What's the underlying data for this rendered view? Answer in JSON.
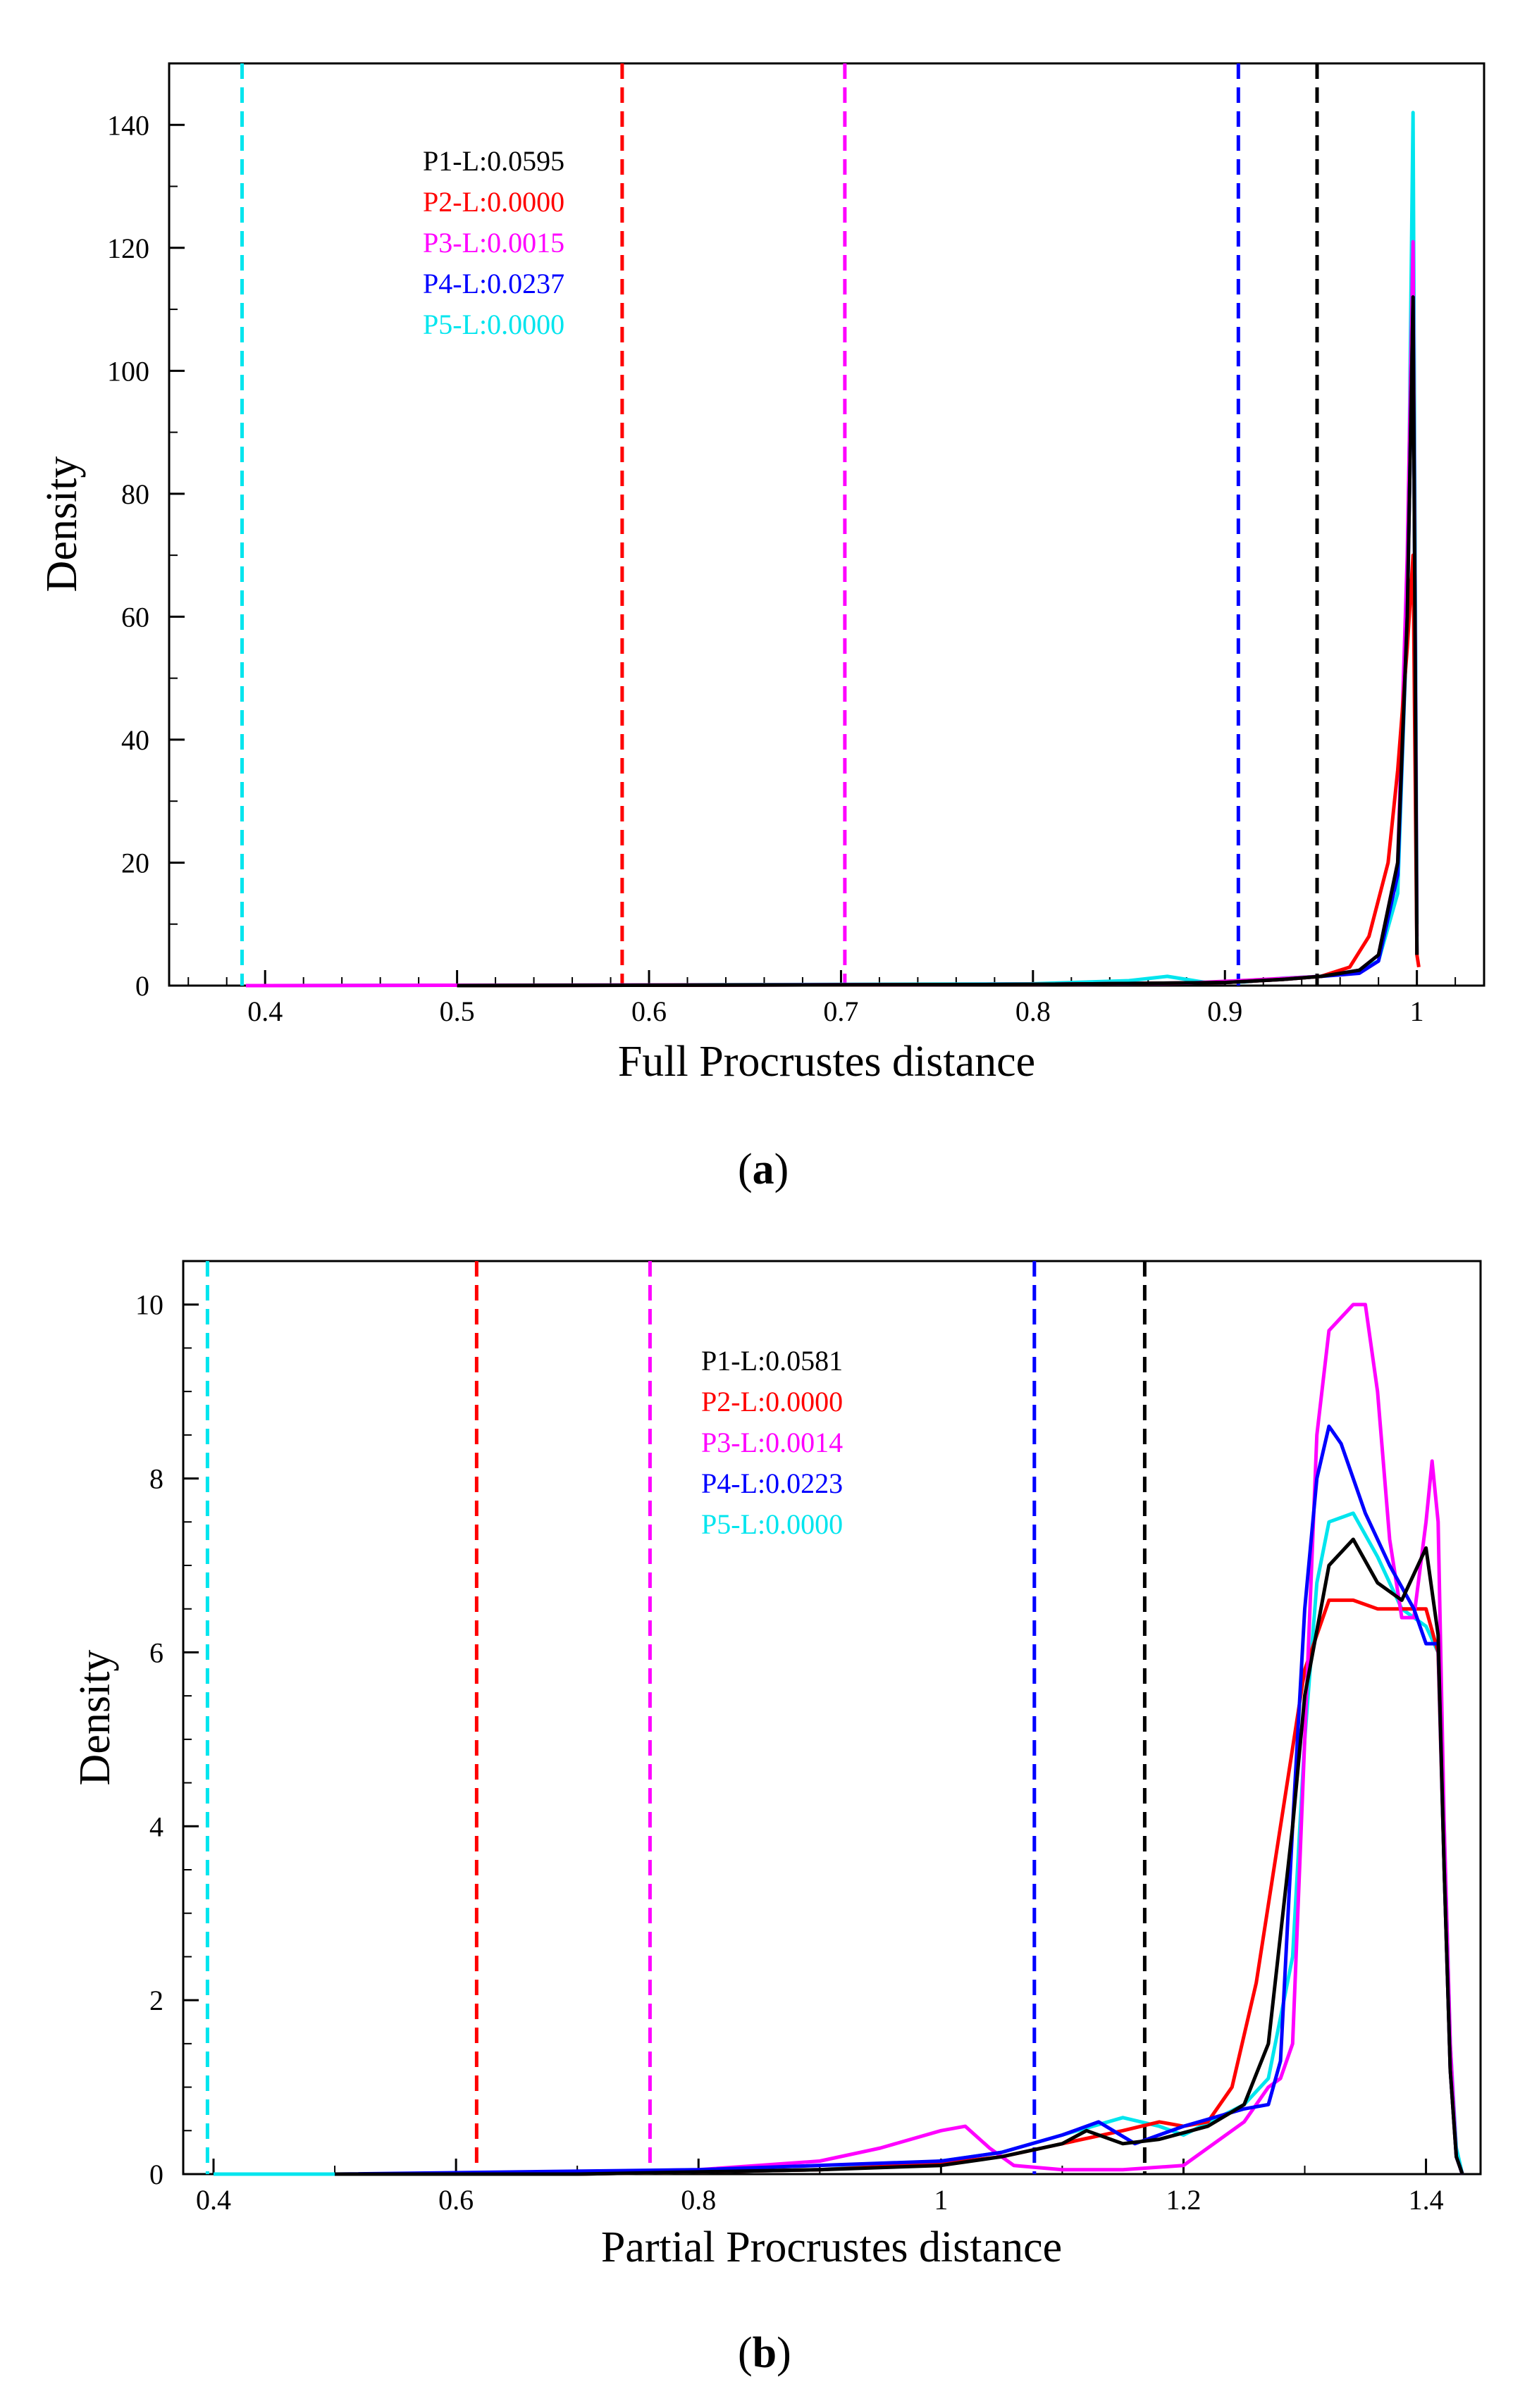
{
  "chart_data": [
    {
      "type": "line",
      "panel_label": "a",
      "xlabel": "Full Procrustes distance",
      "ylabel": "Density",
      "xlim": [
        0.35,
        1.035
      ],
      "ylim": [
        0,
        150
      ],
      "xticks": [
        0.4,
        0.5,
        0.6,
        0.7,
        0.8,
        0.9,
        1
      ],
      "xtick_labels": [
        "0.4",
        "0.5",
        "0.6",
        "0.7",
        "0.8",
        "0.9",
        "1"
      ],
      "yticks": [
        0,
        20,
        40,
        60,
        80,
        100,
        120,
        140
      ],
      "ytick_labels": [
        "0",
        "20",
        "40",
        "60",
        "80",
        "100",
        "120",
        "140"
      ],
      "legend": [
        {
          "text": "P1-L:0.0595",
          "color": "#000000"
        },
        {
          "text": "P2-L:0.0000",
          "color": "#ff0000"
        },
        {
          "text": "P3-L:0.0015",
          "color": "#ff00ff"
        },
        {
          "text": "P4-L:0.0237",
          "color": "#0000ff"
        },
        {
          "text": "P5-L:0.0000",
          "color": "#00e5ee"
        }
      ],
      "vlines": [
        {
          "x": 0.388,
          "color": "#00e5ee"
        },
        {
          "x": 0.586,
          "color": "#ff0000"
        },
        {
          "x": 0.702,
          "color": "#ff00ff"
        },
        {
          "x": 0.907,
          "color": "#0000ff"
        },
        {
          "x": 0.948,
          "color": "#000000"
        }
      ],
      "series": [
        {
          "name": "P5",
          "color": "#00e5ee",
          "x": [
            0.39,
            0.6,
            0.8,
            0.85,
            0.87,
            0.89,
            0.91,
            0.93,
            0.95,
            0.97,
            0.98,
            0.99,
            0.995,
            0.998,
            1.0
          ],
          "y": [
            0,
            0.1,
            0.3,
            0.8,
            1.5,
            0.5,
            0.6,
            1.2,
            1.5,
            2.5,
            4,
            15,
            60,
            142,
            10
          ]
        },
        {
          "name": "P3",
          "color": "#ff00ff",
          "x": [
            0.39,
            0.6,
            0.8,
            0.88,
            0.92,
            0.95,
            0.97,
            0.98,
            0.99,
            0.995,
            0.998,
            1.0
          ],
          "y": [
            0,
            0.1,
            0.2,
            0.4,
            1,
            1.5,
            2.5,
            5,
            20,
            70,
            121,
            8
          ]
        },
        {
          "name": "P4",
          "color": "#0000ff",
          "x": [
            0.5,
            0.8,
            0.9,
            0.93,
            0.95,
            0.97,
            0.98,
            0.99,
            0.995,
            0.998,
            1.0
          ],
          "y": [
            0,
            0.2,
            0.5,
            1,
            1.5,
            2,
            4,
            18,
            60,
            112,
            5
          ]
        },
        {
          "name": "P2",
          "color": "#ff0000",
          "x": [
            0.5,
            0.8,
            0.9,
            0.93,
            0.95,
            0.965,
            0.975,
            0.985,
            0.99,
            0.995,
            0.998,
            1.0,
            1.001
          ],
          "y": [
            0,
            0.2,
            0.5,
            1,
            1.5,
            3,
            8,
            20,
            35,
            55,
            70,
            5,
            3
          ]
        },
        {
          "name": "P1",
          "color": "#000000",
          "x": [
            0.5,
            0.8,
            0.9,
            0.93,
            0.95,
            0.97,
            0.98,
            0.99,
            0.995,
            0.998,
            1.0
          ],
          "y": [
            0,
            0.2,
            0.5,
            1,
            1.5,
            2.5,
            5,
            20,
            60,
            112,
            5
          ]
        }
      ]
    },
    {
      "type": "line",
      "panel_label": "b",
      "xlabel": "Partial Procrustes distance",
      "ylabel": "Density",
      "xlim": [
        0.375,
        1.445
      ],
      "ylim": [
        0,
        10.5
      ],
      "xticks": [
        0.4,
        0.6,
        0.8,
        1,
        1.2,
        1.4
      ],
      "xtick_labels": [
        "0.4",
        "0.6",
        "0.8",
        "1",
        "1.2",
        "1.4"
      ],
      "yticks": [
        0,
        2,
        4,
        6,
        8,
        10
      ],
      "ytick_labels": [
        "0",
        "2",
        "4",
        "6",
        "8",
        "10"
      ],
      "legend": [
        {
          "text": "P1-L:0.0581",
          "color": "#000000"
        },
        {
          "text": "P2-L:0.0000",
          "color": "#ff0000"
        },
        {
          "text": "P3-L:0.0014",
          "color": "#ff00ff"
        },
        {
          "text": "P4-L:0.0223",
          "color": "#0000ff"
        },
        {
          "text": "P5-L:0.0000",
          "color": "#00e5ee"
        }
      ],
      "vlines": [
        {
          "x": 0.395,
          "color": "#00e5ee"
        },
        {
          "x": 0.617,
          "color": "#ff0000"
        },
        {
          "x": 0.76,
          "color": "#ff00ff"
        },
        {
          "x": 1.077,
          "color": "#0000ff"
        },
        {
          "x": 1.168,
          "color": "#000000"
        }
      ],
      "series": [
        {
          "name": "P5",
          "color": "#00e5ee",
          "x": [
            0.4,
            0.5,
            0.7,
            0.9,
            1.0,
            1.05,
            1.1,
            1.15,
            1.18,
            1.2,
            1.25,
            1.27,
            1.29,
            1.3,
            1.31,
            1.32,
            1.34,
            1.36,
            1.38,
            1.4,
            1.41,
            1.415,
            1.42,
            1.425,
            1.43
          ],
          "y": [
            0,
            0,
            0,
            0.05,
            0.15,
            0.25,
            0.45,
            0.65,
            0.55,
            0.45,
            0.8,
            1.1,
            2.5,
            5,
            6.8,
            7.5,
            7.6,
            7.1,
            6.5,
            6.3,
            6,
            4,
            1.5,
            0.3,
            0
          ]
        },
        {
          "name": "P2",
          "color": "#ff0000",
          "x": [
            0.5,
            0.7,
            0.9,
            1.0,
            1.05,
            1.1,
            1.15,
            1.18,
            1.2,
            1.22,
            1.24,
            1.26,
            1.28,
            1.3,
            1.32,
            1.34,
            1.36,
            1.38,
            1.4,
            1.41,
            1.415,
            1.42,
            1.425,
            1.43
          ],
          "y": [
            0,
            0,
            0.05,
            0.12,
            0.2,
            0.35,
            0.5,
            0.6,
            0.55,
            0.6,
            1,
            2.2,
            4,
            5.8,
            6.6,
            6.6,
            6.5,
            6.5,
            6.5,
            6,
            3.5,
            1.2,
            0.2,
            0
          ]
        },
        {
          "name": "P3",
          "color": "#ff00ff",
          "x": [
            0.6,
            0.8,
            0.9,
            0.95,
            1.0,
            1.02,
            1.04,
            1.06,
            1.1,
            1.15,
            1.2,
            1.25,
            1.27,
            1.28,
            1.29,
            1.3,
            1.31,
            1.32,
            1.34,
            1.35,
            1.36,
            1.37,
            1.38,
            1.39,
            1.4,
            1.405,
            1.41,
            1.415,
            1.42,
            1.425,
            1.43
          ],
          "y": [
            0,
            0.05,
            0.15,
            0.3,
            0.5,
            0.55,
            0.3,
            0.1,
            0.05,
            0.05,
            0.1,
            0.6,
            1,
            1.1,
            1.5,
            5,
            8.5,
            9.7,
            10,
            10,
            9,
            7.3,
            6.4,
            6.4,
            7.5,
            8.2,
            7.5,
            4,
            1.5,
            0.2,
            0
          ]
        },
        {
          "name": "P4",
          "color": "#0000ff",
          "x": [
            0.5,
            0.8,
            1.0,
            1.05,
            1.1,
            1.13,
            1.16,
            1.2,
            1.25,
            1.27,
            1.28,
            1.29,
            1.3,
            1.31,
            1.32,
            1.33,
            1.35,
            1.37,
            1.39,
            1.4,
            1.41,
            1.415,
            1.42,
            1.425,
            1.43
          ],
          "y": [
            0,
            0.05,
            0.15,
            0.25,
            0.45,
            0.6,
            0.35,
            0.55,
            0.75,
            0.8,
            1.3,
            4,
            6.5,
            8,
            8.6,
            8.4,
            7.6,
            7,
            6.5,
            6.1,
            6.1,
            3.5,
            1.2,
            0.2,
            0
          ]
        },
        {
          "name": "P1",
          "color": "#000000",
          "x": [
            0.5,
            0.7,
            0.9,
            1.0,
            1.05,
            1.1,
            1.12,
            1.15,
            1.18,
            1.22,
            1.25,
            1.27,
            1.29,
            1.3,
            1.32,
            1.34,
            1.36,
            1.38,
            1.4,
            1.41,
            1.415,
            1.42,
            1.425,
            1.43
          ],
          "y": [
            0,
            0,
            0.05,
            0.1,
            0.2,
            0.35,
            0.5,
            0.35,
            0.4,
            0.55,
            0.8,
            1.5,
            4,
            5.5,
            7,
            7.3,
            6.8,
            6.6,
            7.2,
            6.2,
            3.5,
            1.2,
            0.2,
            0
          ]
        }
      ]
    }
  ]
}
